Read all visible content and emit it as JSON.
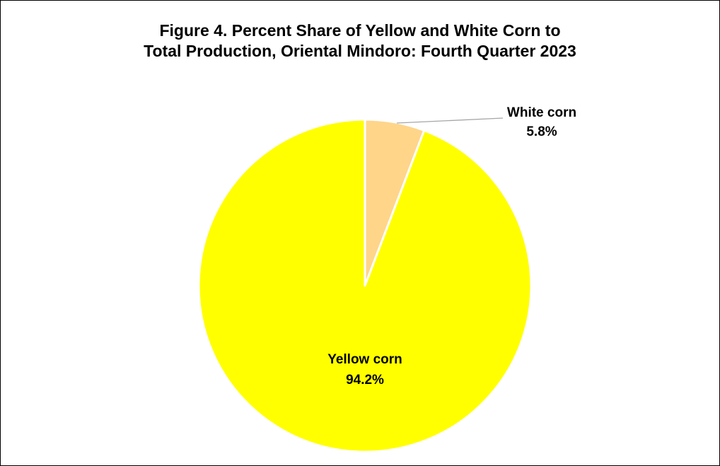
{
  "chart_data": {
    "type": "pie",
    "title_line1": "Figure 4. Percent Share of Yellow and White Corn to",
    "title_line2": "Total Production, Oriental Mindoro: Fourth Quarter 2023",
    "slices": [
      {
        "label": "White corn",
        "value": 5.8,
        "value_label": "5.8%",
        "color": "#FFD58A"
      },
      {
        "label": "Yellow corn",
        "value": 94.2,
        "value_label": "94.2%",
        "color": "#FFFF00"
      }
    ],
    "start_angle_deg": 0,
    "direction": "clockwise",
    "legend": "none"
  }
}
